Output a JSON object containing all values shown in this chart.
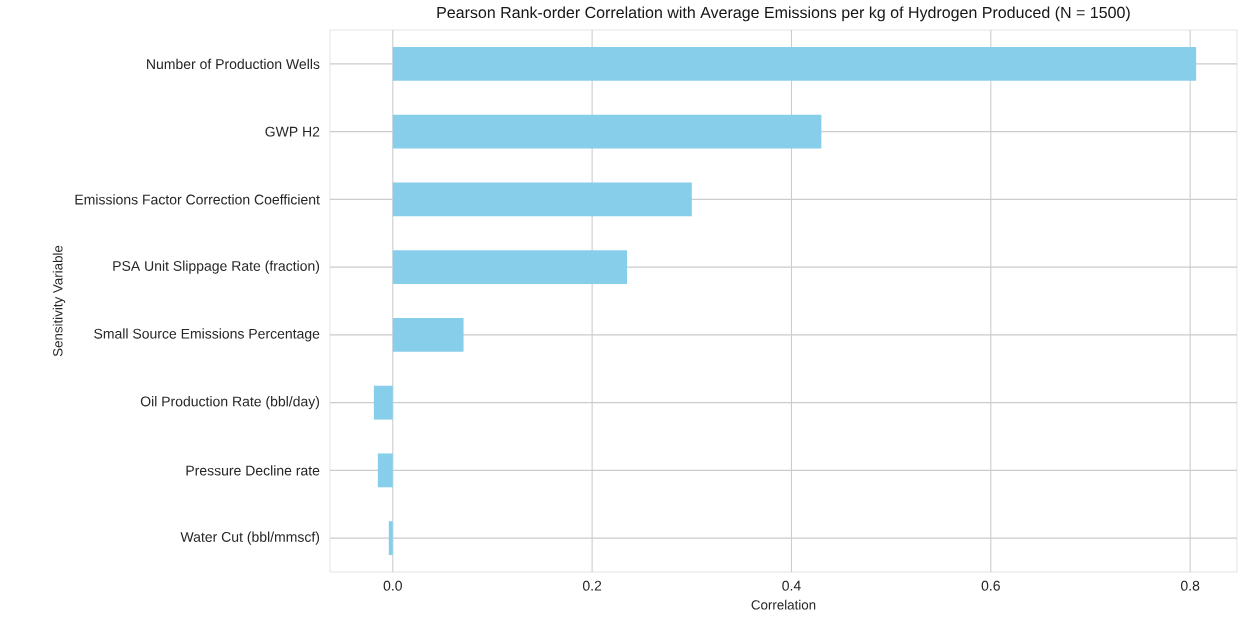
{
  "chart_data": {
    "type": "bar",
    "orientation": "horizontal",
    "title": "Pearson Rank-order Correlation with Average Emissions per kg of Hydrogen Produced (N = 1500)",
    "xlabel": "Correlation",
    "ylabel": "Sensitivity Variable",
    "categories": [
      "Number of Production Wells",
      "GWP H2",
      "Emissions Factor Correction Coefficient",
      "PSA Unit Slippage Rate (fraction)",
      "Small Source Emissions Percentage",
      "Oil Production Rate (bbl/day)",
      "Pressure Decline rate",
      "Water Cut (bbl/mmscf)"
    ],
    "values": [
      0.806,
      0.43,
      0.3,
      0.235,
      0.071,
      -0.019,
      -0.015,
      -0.004
    ],
    "color": "#87ceeb",
    "xlim": [
      -0.063,
      0.847
    ],
    "xticks": [
      {
        "value": 0,
        "label": "0.0"
      },
      0.2,
      0.4,
      0.6,
      0.8
    ],
    "grid": true
  }
}
